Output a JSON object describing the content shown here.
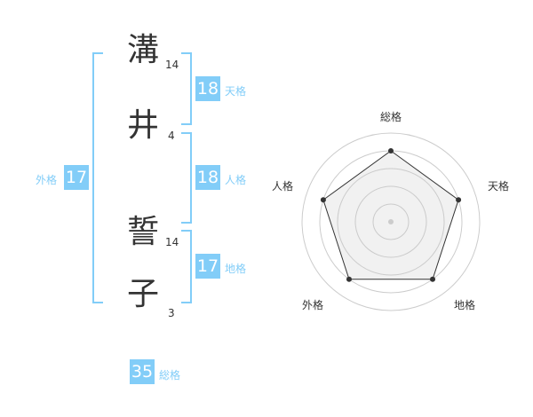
{
  "name": [
    {
      "char": "溝",
      "strokes": "14"
    },
    {
      "char": "井",
      "strokes": "4"
    },
    {
      "char": "誓",
      "strokes": "14"
    },
    {
      "char": "子",
      "strokes": "3"
    }
  ],
  "kaku": {
    "tenkaku": {
      "label": "天格",
      "value": "18"
    },
    "jinkaku": {
      "label": "人格",
      "value": "18"
    },
    "chikaku": {
      "label": "地格",
      "value": "17"
    },
    "gaikaku": {
      "label": "外格",
      "value": "17"
    },
    "soukaku": {
      "label": "総格",
      "value": "35"
    }
  },
  "accent_color": "#82cdf8",
  "chart_data": {
    "type": "radar",
    "axes": [
      "総格",
      "天格",
      "地格",
      "外格",
      "人格"
    ],
    "values": [
      4,
      4,
      4,
      4,
      4
    ],
    "range": [
      0,
      5
    ],
    "rings": 5
  }
}
